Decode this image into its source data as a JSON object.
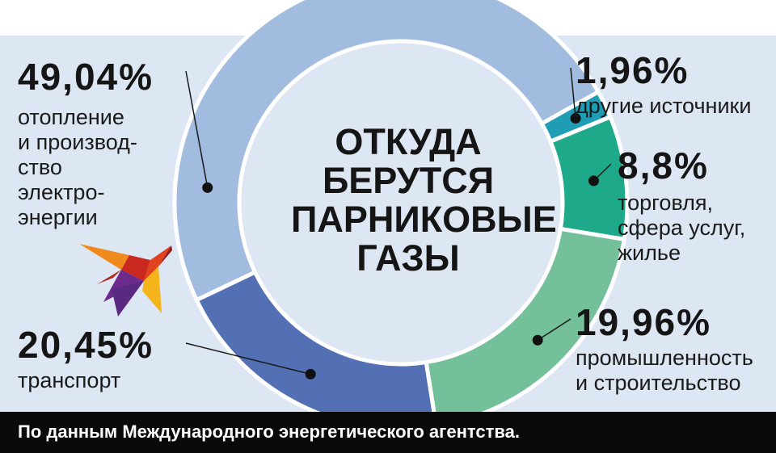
{
  "chart_data": {
    "type": "pie",
    "title": "ОТКУДА\nБЕРУТСЯ\nПАРНИКОВЫЕ\nГАЗЫ",
    "slices": [
      {
        "label": "отопление\nи производ-\nство\nэлектро-\nэнергии",
        "value": 49.04,
        "value_label": "49,04%",
        "color": "#a2bcdf"
      },
      {
        "label": "другие источники",
        "value": 1.96,
        "value_label": "1,96%",
        "color": "#1f9db5"
      },
      {
        "label": "торговля,\nсфера услуг,\nжилье",
        "value": 8.8,
        "value_label": "8,8%",
        "color": "#1eaa8a"
      },
      {
        "label": "промышленность\nи строительство",
        "value": 19.96,
        "value_label": "19,96%",
        "color": "#74c09a"
      },
      {
        "label": "транспорт",
        "value": 20.45,
        "value_label": "20,45%",
        "color": "#5470b4"
      }
    ]
  },
  "footer": {
    "source": "По данным Международного энергетического агентства."
  }
}
